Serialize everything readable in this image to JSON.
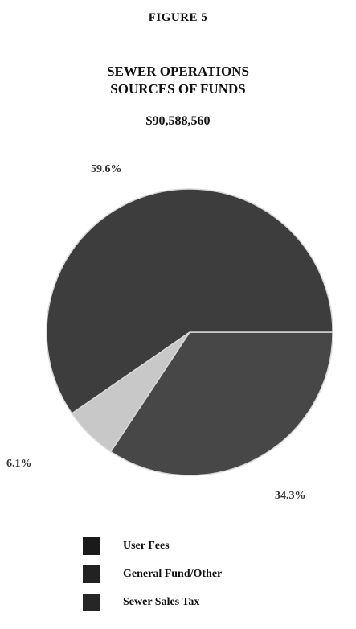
{
  "figure_label": "FIGURE 5",
  "chart_data": {
    "type": "pie",
    "title": "SEWER OPERATIONS SOURCES OF FUNDS",
    "title_lines": [
      "SEWER OPERATIONS",
      "SOURCES OF FUNDS"
    ],
    "subtitle": "$90,588,560",
    "slices": [
      {
        "name": "User Fees",
        "value": 59.6,
        "label": "59.6%",
        "color": "#3d3d3d"
      },
      {
        "name": "General Fund/Other",
        "value": 34.3,
        "label": "34.3%",
        "color": "#474747"
      },
      {
        "name": "Sewer Sales Tax",
        "value": 6.1,
        "label": "6.1%",
        "color": "#c8c8c8"
      }
    ],
    "legend_placement": "bottom"
  }
}
